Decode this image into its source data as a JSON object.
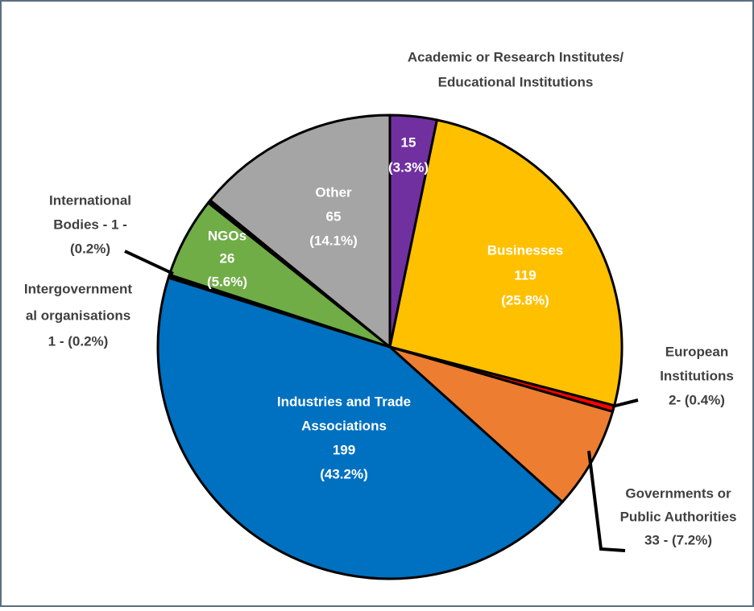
{
  "chart_data": {
    "type": "pie",
    "categories": [
      [
        "Academic or Research Institutes/",
        "Educational Institutions"
      ],
      [
        "Businesses"
      ],
      [
        "European",
        "Institutions"
      ],
      [
        "Governments or",
        "Public Authorities"
      ],
      [
        "Industries and Trade",
        "Associations"
      ],
      [
        "Intergovernment",
        "al organisations"
      ],
      [
        "NGOs"
      ],
      [
        "International",
        "Bodies - 1 -"
      ],
      [
        "Other"
      ]
    ],
    "values": [
      15,
      119,
      2,
      33,
      199,
      1,
      26,
      1,
      65
    ],
    "value_labels": [
      [
        "15",
        "(3.3%)"
      ],
      [
        "119",
        "(25.8%)"
      ],
      [
        "2- (0.4%)"
      ],
      [
        "33 - (7.2%)"
      ],
      [
        "199",
        "(43.2%)"
      ],
      [
        "1  - (0.2%)"
      ],
      [
        "26",
        "(5.6%)"
      ],
      [
        "(0.2%)"
      ],
      [
        "65",
        "(14.1%)"
      ]
    ],
    "colors": [
      "#7030a0",
      "#ffc000",
      "#ff0000",
      "#ed7d31",
      "#0070c0",
      "#000000",
      "#70ad47",
      "#000000",
      "#a5a5a5"
    ]
  }
}
